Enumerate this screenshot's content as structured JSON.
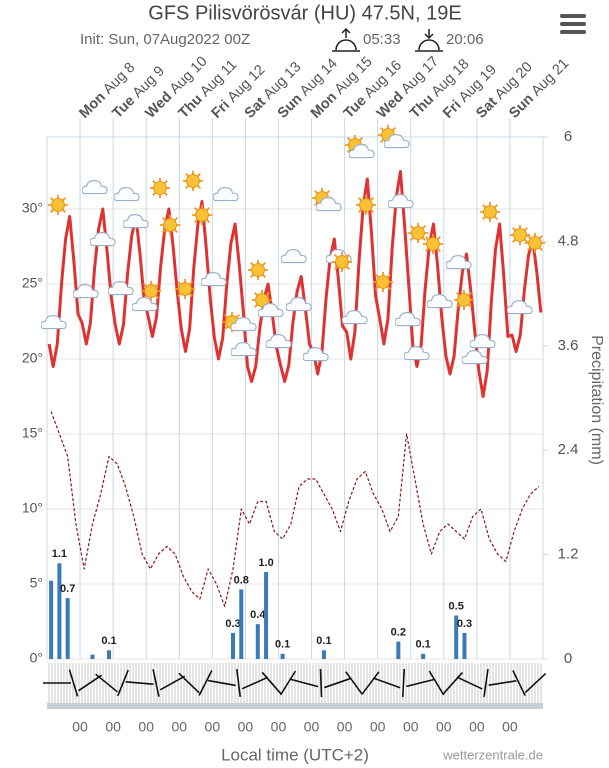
{
  "chart_data": {
    "type": "line",
    "title": "GFS Pilisvörösvár (HU) 47.5N, 19E",
    "subtitle": "Init: Sun, 07Aug2022 00Z",
    "sunrise": "05:33",
    "sunset": "20:06",
    "days": [
      null,
      {
        "weekday": "Mon",
        "date": "Aug 8"
      },
      {
        "weekday": "Tue",
        "date": "Aug 9"
      },
      {
        "weekday": "Wed",
        "date": "Aug 10"
      },
      {
        "weekday": "Thu",
        "date": "Aug 11"
      },
      {
        "weekday": "Fri",
        "date": "Aug 12"
      },
      {
        "weekday": "Sat",
        "date": "Aug 13"
      },
      {
        "weekday": "Sun",
        "date": "Aug 14"
      },
      {
        "weekday": "Mon",
        "date": "Aug 15"
      },
      {
        "weekday": "Tue",
        "date": "Aug 16"
      },
      {
        "weekday": "Wed",
        "date": "Aug 17"
      },
      {
        "weekday": "Thu",
        "date": "Aug 18"
      },
      {
        "weekday": "Fri",
        "date": "Aug 19"
      },
      {
        "weekday": "Sat",
        "date": "Aug 20"
      },
      {
        "weekday": "Sun",
        "date": "Aug 21"
      }
    ],
    "x_labels": [
      "00",
      "00",
      "00",
      "00",
      "00",
      "00",
      "00",
      "00",
      "00",
      "00",
      "00",
      "00",
      "00",
      "00"
    ],
    "xlabel": "Local time (UTC+2)",
    "y2label": "Precipitation (mm)",
    "credit": "wetterzentrale.de",
    "grid": true,
    "ylim": [
      0,
      34.8
    ],
    "yticks": [
      {
        "value": 0,
        "label": "0°"
      },
      {
        "value": 5,
        "label": "5°"
      },
      {
        "value": 10,
        "label": "10°"
      },
      {
        "value": 15,
        "label": "15°"
      },
      {
        "value": 20,
        "label": "20°"
      },
      {
        "value": 25,
        "label": "25°"
      },
      {
        "value": 30,
        "label": "30°"
      }
    ],
    "y2lim": [
      0,
      6
    ],
    "y2ticks": [
      0,
      1.2,
      2.4,
      3.6,
      4.8,
      6
    ],
    "series": [
      {
        "color": "#e03232",
        "values": [
          21,
          19.5,
          21,
          25,
          28,
          29.5,
          26.5,
          23,
          22.4,
          21,
          22.4,
          26,
          28.7,
          30,
          27.3,
          24.2,
          22.3,
          21,
          22.3,
          25.7,
          28.2,
          29.5,
          27,
          24,
          22.8,
          21.5,
          22.8,
          26.2,
          28.7,
          30,
          27.5,
          24.5,
          22,
          20.5,
          22,
          26,
          29,
          30.5,
          27.5,
          24,
          21.4,
          20,
          21.4,
          25,
          27.7,
          29,
          26.3,
          23.2,
          19.5,
          18.5,
          19.5,
          22.1,
          24,
          25,
          23,
          20.8,
          19.6,
          18.5,
          19.6,
          22.4,
          24.5,
          25.5,
          23.4,
          21,
          20.4,
          19,
          20.4,
          24,
          26.7,
          28,
          25.3,
          22.2,
          21.8,
          20,
          21.8,
          26.6,
          30.2,
          32,
          28.4,
          24.2,
          22.7,
          21,
          22.7,
          27.3,
          30.8,
          32.5,
          29,
          25,
          20.9,
          19.5,
          20.9,
          24.7,
          27.6,
          29,
          26.2,
          22.8,
          20.2,
          19,
          20.2,
          23.4,
          25.8,
          27,
          24.6,
          21.8,
          19.2,
          17.5,
          19.2,
          23.8,
          27.3,
          29,
          25.6,
          21.5,
          21.6,
          20.5,
          21.6,
          24.6,
          26.9,
          28,
          25.8,
          23.1
        ]
      },
      {
        "color": "#8b1a1a",
        "dashed": true,
        "values": [
          16.5,
          15,
          13.5,
          9,
          6,
          9,
          11,
          13.5,
          13,
          11.5,
          9.5,
          7,
          6,
          7,
          7.5,
          7,
          5.5,
          4.5,
          4,
          6,
          5,
          3.5,
          6,
          10,
          9,
          10.5,
          10.5,
          8.5,
          8,
          9,
          11.5,
          12,
          12,
          11,
          10,
          8.5,
          10.5,
          12,
          12.5,
          11,
          10,
          8.5,
          9.5,
          15,
          12,
          9,
          7,
          8.5,
          9,
          8.5,
          8,
          9.5,
          10,
          8,
          7,
          6.5,
          8.5,
          10,
          11,
          11.5
        ]
      },
      {
        "color": "#3a7ab8",
        "axis": "y2",
        "bar": true,
        "values": [
          0.9,
          1.1,
          0.7,
          0,
          0,
          0.05,
          0,
          0.1,
          0,
          0,
          0,
          0,
          0,
          0,
          0,
          0,
          0,
          0,
          0,
          0,
          0,
          0,
          0.3,
          0.8,
          0,
          0.4,
          1.0,
          0,
          0.06,
          0,
          0,
          0,
          0,
          0.1,
          0,
          0,
          0,
          0,
          0,
          0,
          0,
          0,
          0.2,
          0,
          0,
          0.06,
          0,
          0,
          0,
          0.5,
          0.3,
          0,
          0,
          0,
          0,
          0,
          0,
          0,
          0,
          0
        ],
        "value_labels": [
          null,
          "1.1",
          "0.7",
          null,
          null,
          null,
          null,
          "0.1",
          null,
          null,
          null,
          null,
          null,
          null,
          null,
          null,
          null,
          null,
          null,
          null,
          null,
          null,
          "0.3",
          "0.8",
          null,
          "0.4",
          "1.0",
          null,
          "0.1",
          null,
          null,
          null,
          null,
          "0.1",
          null,
          null,
          null,
          null,
          null,
          null,
          null,
          null,
          "0.2",
          null,
          null,
          "0.1",
          null,
          null,
          null,
          "0.5",
          "0.3",
          null,
          null,
          null,
          null,
          null,
          null,
          null,
          null,
          null
        ]
      }
    ]
  }
}
